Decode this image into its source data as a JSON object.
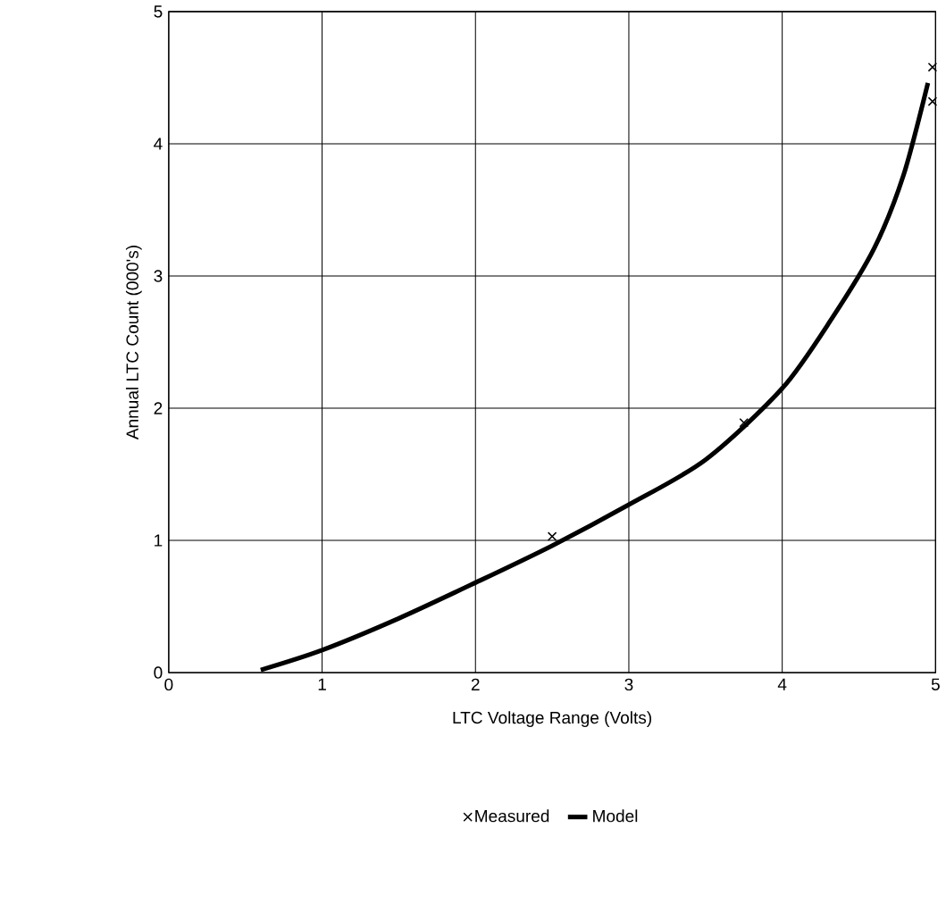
{
  "chart_data": {
    "type": "scatter",
    "xlabel": "LTC Voltage Range (Volts)",
    "ylabel": "Annual LTC Count (000's)",
    "xlim": [
      0,
      5
    ],
    "ylim": [
      0,
      5
    ],
    "xticks": [
      0,
      1,
      2,
      3,
      4,
      5
    ],
    "yticks": [
      0,
      1,
      2,
      3,
      4,
      5
    ],
    "grid": true,
    "legend": "bottom",
    "series": [
      {
        "name": "Measured",
        "marker": "cross",
        "color": "#000000",
        "x": [
          2.5,
          3.75,
          4.98,
          4.98
        ],
        "values": [
          1.03,
          1.89,
          4.58,
          4.32
        ]
      },
      {
        "name": "Model",
        "type": "line",
        "marker": "none",
        "color": "#000000",
        "x": [
          0.6,
          1.0,
          1.5,
          2.0,
          2.5,
          3.0,
          3.5,
          4.0,
          4.33,
          4.6,
          4.79,
          4.95
        ],
        "values": [
          0.02,
          0.17,
          0.41,
          0.68,
          0.96,
          1.27,
          1.61,
          2.15,
          2.69,
          3.21,
          3.76,
          4.46
        ]
      }
    ]
  }
}
